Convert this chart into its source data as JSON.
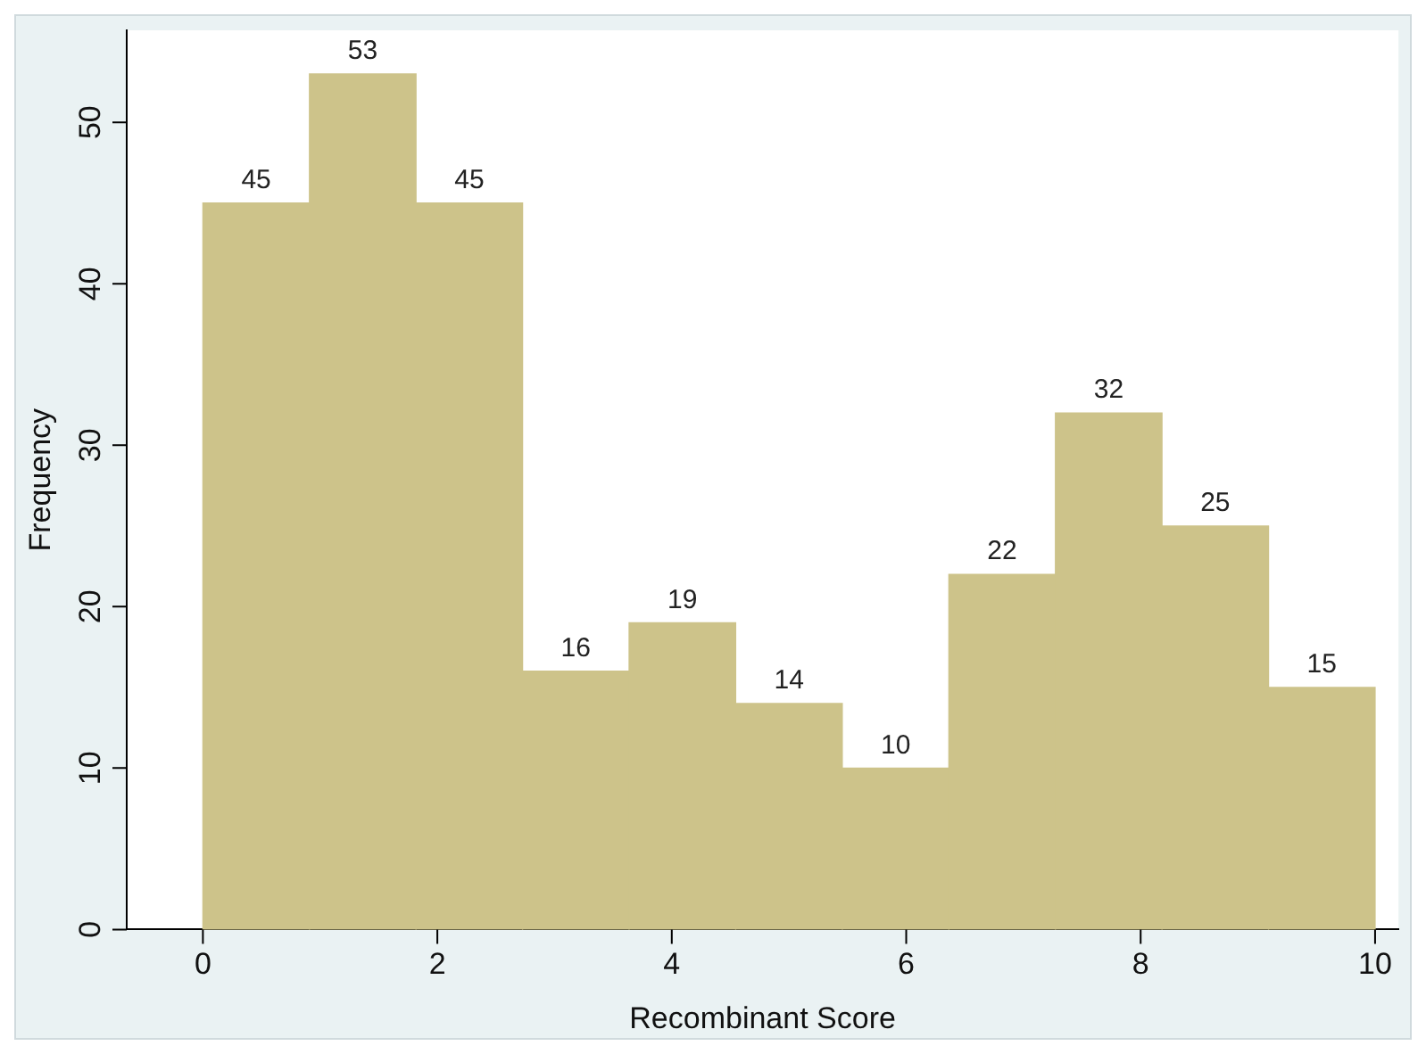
{
  "chart_data": {
    "type": "histogram",
    "xlabel": "Recombinant Score",
    "ylabel": "Frequency",
    "bins": [
      0,
      0.909,
      1.818,
      2.727,
      3.636,
      4.545,
      5.455,
      6.364,
      7.273,
      8.182,
      9.091,
      10
    ],
    "values": [
      45,
      53,
      45,
      16,
      19,
      14,
      10,
      22,
      32,
      25,
      15
    ],
    "color": "#cdc38a",
    "data_labels": true,
    "grid": false,
    "legend": false,
    "xlim": [
      -0.65,
      10.2
    ],
    "ylim": [
      0,
      55.7
    ],
    "xticks": [
      0,
      2,
      4,
      6,
      8,
      10
    ],
    "yticks": [
      0,
      10,
      20,
      30,
      40,
      50
    ]
  }
}
